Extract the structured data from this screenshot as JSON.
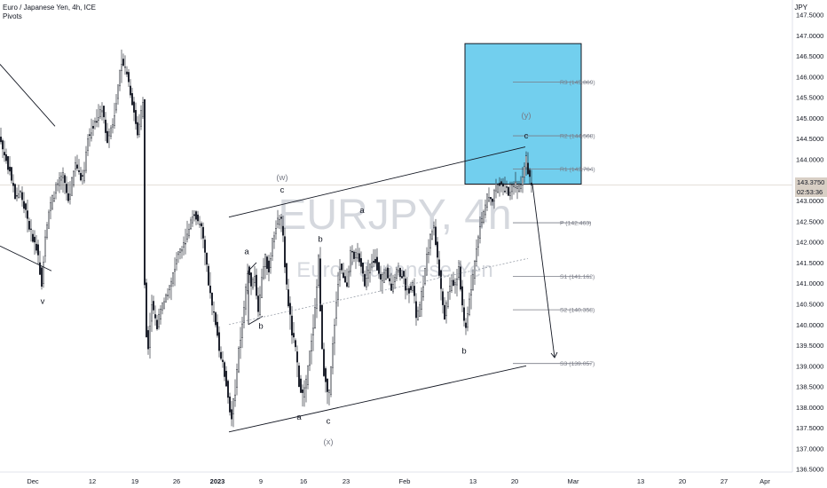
{
  "header": {
    "title": "Euro / Japanese Yen, 4h, ICE",
    "indicator": "Pivots"
  },
  "axis_unit": "JPY",
  "watermark": {
    "symbol": "EURJPY, 4h",
    "name": "Euro / Japanese Yen"
  },
  "price_badge": {
    "price": "143.3750",
    "countdown": "02:53:36"
  },
  "colors": {
    "candle": "#131722",
    "pivot_box_fill": "#5ec8ec",
    "pivot_box_stroke": "#131722",
    "pivot_line": "#787b86",
    "trendline": "#131722",
    "dotted_line": "#9aa0aa",
    "axis_text": "#131722",
    "label_muted": "#787b86",
    "watermark": "#d5d8de"
  },
  "chart_data": {
    "type": "candlestick",
    "ylim": [
      136.5,
      147.5
    ],
    "y_ticks": [
      "136.5000",
      "137.0000",
      "137.5000",
      "138.0000",
      "138.5000",
      "139.0000",
      "139.5000",
      "140.0000",
      "140.5000",
      "141.0000",
      "141.5000",
      "142.0000",
      "142.5000",
      "143.0000",
      "143.5000",
      "144.0000",
      "144.5000",
      "145.0000",
      "145.5000",
      "146.0000",
      "146.5000",
      "147.0000",
      "147.5000"
    ],
    "x_ticks": [
      "Dec",
      "12",
      "19",
      "26",
      "2023",
      "9",
      "16",
      "23",
      "Feb",
      "13",
      "20",
      "Mar",
      "13",
      "20",
      "27",
      "Apr"
    ],
    "path": [
      [
        0,
        144.6
      ],
      [
        6,
        144.1
      ],
      [
        12,
        143.7
      ],
      [
        18,
        143.1
      ],
      [
        24,
        143.2
      ],
      [
        30,
        142.7
      ],
      [
        36,
        142.2
      ],
      [
        42,
        141.9
      ],
      [
        48,
        141.0
      ],
      [
        52,
        142.2
      ],
      [
        58,
        142.9
      ],
      [
        64,
        143.3
      ],
      [
        72,
        143.6
      ],
      [
        78,
        143.0
      ],
      [
        86,
        143.9
      ],
      [
        94,
        143.5
      ],
      [
        100,
        144.5
      ],
      [
        108,
        144.9
      ],
      [
        116,
        145.2
      ],
      [
        122,
        144.5
      ],
      [
        128,
        144.9
      ],
      [
        134,
        145.7
      ],
      [
        138,
        146.4
      ],
      [
        144,
        146.1
      ],
      [
        150,
        145.4
      ],
      [
        156,
        144.6
      ],
      [
        162,
        145.4
      ],
      [
        163,
        141.6
      ],
      [
        166,
        139.8
      ],
      [
        168,
        139.5
      ],
      [
        172,
        140.5
      ],
      [
        178,
        140.0
      ],
      [
        186,
        140.6
      ],
      [
        194,
        141.0
      ],
      [
        200,
        141.6
      ],
      [
        206,
        141.8
      ],
      [
        212,
        142.2
      ],
      [
        218,
        142.7
      ],
      [
        224,
        142.5
      ],
      [
        228,
        142.3
      ],
      [
        232,
        141.7
      ],
      [
        236,
        141.0
      ],
      [
        240,
        140.4
      ],
      [
        244,
        140.1
      ],
      [
        248,
        139.4
      ],
      [
        252,
        139.0
      ],
      [
        256,
        138.6
      ],
      [
        260,
        137.9
      ],
      [
        262,
        137.8
      ],
      [
        266,
        138.4
      ],
      [
        270,
        139.4
      ],
      [
        274,
        140.0
      ],
      [
        277,
        140.6
      ],
      [
        280,
        141.3
      ],
      [
        284,
        141.0
      ],
      [
        288,
        141.2
      ],
      [
        292,
        140.3
      ],
      [
        296,
        141.2
      ],
      [
        300,
        141.6
      ],
      [
        304,
        141.3
      ],
      [
        308,
        142.0
      ],
      [
        312,
        142.4
      ],
      [
        316,
        142.6
      ],
      [
        319,
        142.4
      ],
      [
        322,
        141.4
      ],
      [
        326,
        140.5
      ],
      [
        330,
        139.8
      ],
      [
        334,
        139.4
      ],
      [
        338,
        138.6
      ],
      [
        342,
        138.3
      ],
      [
        346,
        138.6
      ],
      [
        350,
        139.3
      ],
      [
        354,
        140.0
      ],
      [
        357,
        140.6
      ],
      [
        360,
        141.6
      ],
      [
        362,
        140.4
      ],
      [
        365,
        139.0
      ],
      [
        368,
        138.6
      ],
      [
        371,
        138.1
      ],
      [
        374,
        138.9
      ],
      [
        377,
        139.8
      ],
      [
        380,
        140.6
      ],
      [
        384,
        141.4
      ],
      [
        388,
        141.2
      ],
      [
        392,
        141.0
      ],
      [
        396,
        141.7
      ],
      [
        400,
        141.6
      ],
      [
        404,
        141.8
      ],
      [
        408,
        141.4
      ],
      [
        412,
        141.0
      ],
      [
        418,
        141.4
      ],
      [
        424,
        141.6
      ],
      [
        430,
        141.0
      ],
      [
        436,
        141.3
      ],
      [
        442,
        140.9
      ],
      [
        448,
        141.3
      ],
      [
        454,
        141.2
      ],
      [
        460,
        140.8
      ],
      [
        466,
        141.0
      ],
      [
        470,
        140.2
      ],
      [
        474,
        140.4
      ],
      [
        478,
        141.0
      ],
      [
        482,
        141.6
      ],
      [
        486,
        142.1
      ],
      [
        490,
        142.4
      ],
      [
        494,
        141.6
      ],
      [
        498,
        140.8
      ],
      [
        502,
        140.2
      ],
      [
        506,
        140.7
      ],
      [
        510,
        141.1
      ],
      [
        514,
        140.9
      ],
      [
        518,
        141.4
      ],
      [
        520,
        140.9
      ],
      [
        523,
        140.1
      ],
      [
        526,
        139.9
      ],
      [
        530,
        140.7
      ],
      [
        534,
        141.2
      ],
      [
        538,
        141.8
      ],
      [
        542,
        142.4
      ],
      [
        546,
        142.7
      ],
      [
        550,
        143.1
      ],
      [
        555,
        142.9
      ],
      [
        560,
        143.3
      ],
      [
        565,
        143.4
      ],
      [
        570,
        143.3
      ],
      [
        575,
        143.2
      ],
      [
        580,
        143.4
      ],
      [
        585,
        143.3
      ],
      [
        590,
        143.6
      ],
      [
        594,
        144.0
      ],
      [
        597,
        143.6
      ],
      [
        600,
        143.4
      ]
    ],
    "pivot_levels": [
      {
        "label": "R3 (145.869)",
        "value": 145.869
      },
      {
        "label": "R2 (144.568)",
        "value": 144.568
      },
      {
        "label": "R1 (143.764)",
        "value": 143.764
      },
      {
        "label": "P (142.463)",
        "value": 142.463
      },
      {
        "label": "S1 (141.162)",
        "value": 141.162
      },
      {
        "label": "S2 (140.358)",
        "value": 140.358
      },
      {
        "label": "S3 (139.057)",
        "value": 139.057
      }
    ],
    "target_box": {
      "x_from": 524,
      "x_to": 655,
      "y_low": 143.4,
      "y_high": 146.8
    },
    "wave_labels": [
      {
        "text": "v",
        "x": 48,
        "y": 140.5
      },
      {
        "text": "(w)",
        "x": 318,
        "y": 143.5
      },
      {
        "text": "c",
        "x": 318,
        "y": 143.2
      },
      {
        "text": "a",
        "x": 278,
        "y": 141.7
      },
      {
        "text": "b",
        "x": 294,
        "y": 139.9
      },
      {
        "text": "b",
        "x": 361,
        "y": 142.0
      },
      {
        "text": "a",
        "x": 337,
        "y": 137.7
      },
      {
        "text": "c",
        "x": 370,
        "y": 137.6
      },
      {
        "text": "(x)",
        "x": 370,
        "y": 137.1
      },
      {
        "text": "a",
        "x": 408,
        "y": 142.7
      },
      {
        "text": "b",
        "x": 523,
        "y": 139.3
      },
      {
        "text": "(y)",
        "x": 593,
        "y": 145.0
      },
      {
        "text": "c",
        "x": 593,
        "y": 144.5
      }
    ],
    "trendlines": [
      {
        "from": [
          0,
          146.3
        ],
        "to": [
          62,
          144.8
        ]
      },
      {
        "from": [
          0,
          141.9
        ],
        "to": [
          58,
          141.3
        ]
      },
      {
        "from": [
          258,
          142.6
        ],
        "to": [
          592,
          144.3
        ]
      },
      {
        "from": [
          258,
          137.4
        ],
        "to": [
          593,
          139.0
        ]
      },
      {
        "from": [
          280,
          141.3
        ],
        "to": [
          289,
          141.5
        ]
      },
      {
        "from": [
          280,
          141.3
        ],
        "to": [
          280,
          140.0
        ]
      },
      {
        "from": [
          280,
          140.0
        ],
        "to": [
          296,
          140.2
        ]
      },
      {
        "from": [
          600,
          143.4
        ],
        "to": [
          625,
          139.2
        ]
      }
    ],
    "dotted_lines": [
      {
        "from": [
          258,
          140.0
        ],
        "to": [
          595,
          141.6
        ]
      }
    ]
  }
}
